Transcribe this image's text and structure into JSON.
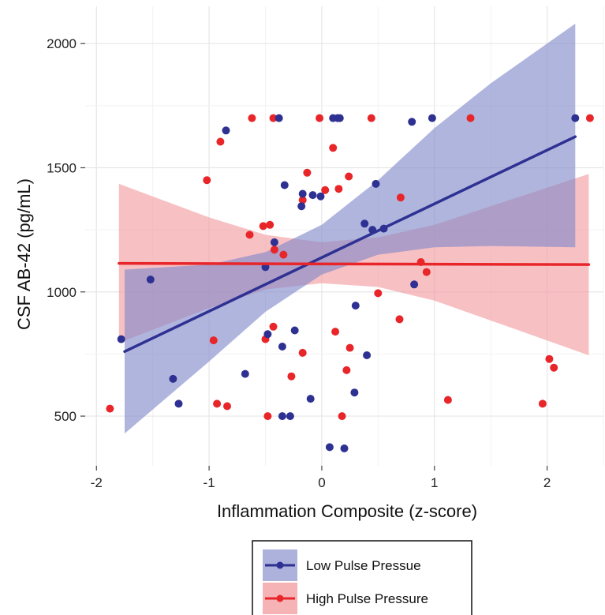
{
  "chart_data": {
    "type": "scatter",
    "xlabel": "Inflammation Composite (z-score)",
    "ylabel": "CSF AB-42 (pg/mL)",
    "xlim": [
      -2.1,
      2.5
    ],
    "ylim": [
      300,
      2150
    ],
    "x_ticks": [
      -2,
      -1,
      0,
      1,
      2
    ],
    "x_tick_labels": [
      "-2",
      "-1",
      "0",
      "1",
      "2"
    ],
    "y_ticks": [
      500,
      1000,
      1500,
      2000
    ],
    "y_tick_labels": [
      "500",
      "1000",
      "1500",
      "2000"
    ],
    "grid": true,
    "legend_position": "bottom",
    "series": [
      {
        "name": "Low Pulse Pressue",
        "color": "#2e3192",
        "band_color": "#8088c9",
        "points": [
          [
            -1.78,
            810
          ],
          [
            -1.52,
            1050
          ],
          [
            -1.32,
            650
          ],
          [
            -1.27,
            550
          ],
          [
            -0.85,
            1650
          ],
          [
            -0.68,
            670
          ],
          [
            -0.5,
            1100
          ],
          [
            -0.48,
            830
          ],
          [
            -0.42,
            1200
          ],
          [
            -0.38,
            1700
          ],
          [
            -0.35,
            780
          ],
          [
            -0.35,
            500
          ],
          [
            -0.33,
            1430
          ],
          [
            -0.28,
            500
          ],
          [
            -0.24,
            845
          ],
          [
            -0.18,
            1345
          ],
          [
            -0.17,
            1395
          ],
          [
            -0.1,
            570
          ],
          [
            -0.08,
            1390
          ],
          [
            -0.01,
            1385
          ],
          [
            0.07,
            375
          ],
          [
            0.1,
            1700
          ],
          [
            0.14,
            1700
          ],
          [
            0.16,
            1700
          ],
          [
            0.2,
            370
          ],
          [
            0.29,
            595
          ],
          [
            0.3,
            945
          ],
          [
            0.38,
            1275
          ],
          [
            0.4,
            745
          ],
          [
            0.45,
            1250
          ],
          [
            0.48,
            1435
          ],
          [
            0.55,
            1255
          ],
          [
            0.8,
            1685
          ],
          [
            0.82,
            1030
          ],
          [
            0.98,
            1700
          ],
          [
            2.25,
            1700
          ]
        ],
        "fit": {
          "x": [
            -1.75,
            2.25
          ],
          "y": [
            760,
            1625
          ]
        },
        "ci_band": {
          "x": [
            -1.75,
            -1.0,
            -0.5,
            0.0,
            0.5,
            1.0,
            1.5,
            2.25
          ],
          "lower": [
            430,
            720,
            920,
            1070,
            1150,
            1180,
            1185,
            1180
          ],
          "upper": [
            1090,
            1110,
            1160,
            1270,
            1450,
            1660,
            1840,
            2080
          ]
        }
      },
      {
        "name": "High Pulse Pressure",
        "color": "#e8262a",
        "band_color": "#f29a9e",
        "points": [
          [
            -1.88,
            530
          ],
          [
            -1.02,
            1450
          ],
          [
            -0.96,
            805
          ],
          [
            -0.93,
            550
          ],
          [
            -0.9,
            1605
          ],
          [
            -0.84,
            540
          ],
          [
            -0.64,
            1230
          ],
          [
            -0.62,
            1700
          ],
          [
            -0.52,
            1265
          ],
          [
            -0.5,
            810
          ],
          [
            -0.48,
            500
          ],
          [
            -0.46,
            1270
          ],
          [
            -0.43,
            860
          ],
          [
            -0.43,
            1700
          ],
          [
            -0.42,
            1170
          ],
          [
            -0.34,
            1150
          ],
          [
            -0.27,
            660
          ],
          [
            -0.17,
            755
          ],
          [
            -0.17,
            1370
          ],
          [
            -0.13,
            1480
          ],
          [
            -0.02,
            1700
          ],
          [
            0.03,
            1410
          ],
          [
            0.1,
            1580
          ],
          [
            0.12,
            840
          ],
          [
            0.15,
            1415
          ],
          [
            0.18,
            500
          ],
          [
            0.22,
            685
          ],
          [
            0.24,
            1465
          ],
          [
            0.25,
            775
          ],
          [
            0.44,
            1700
          ],
          [
            0.5,
            995
          ],
          [
            0.69,
            890
          ],
          [
            0.7,
            1380
          ],
          [
            0.88,
            1120
          ],
          [
            0.93,
            1080
          ],
          [
            1.12,
            565
          ],
          [
            1.32,
            1700
          ],
          [
            1.96,
            550
          ],
          [
            2.02,
            730
          ],
          [
            2.06,
            695
          ],
          [
            2.38,
            1700
          ]
        ],
        "fit": {
          "x": [
            -1.8,
            2.37
          ],
          "y": [
            1115,
            1110
          ]
        },
        "ci_band": {
          "x": [
            -1.8,
            -1.0,
            -0.5,
            0.0,
            0.5,
            1.0,
            1.5,
            2.37
          ],
          "lower": [
            795,
            935,
            1010,
            1035,
            1020,
            965,
            885,
            745
          ],
          "upper": [
            1435,
            1300,
            1230,
            1200,
            1220,
            1270,
            1345,
            1475
          ]
        }
      }
    ]
  }
}
